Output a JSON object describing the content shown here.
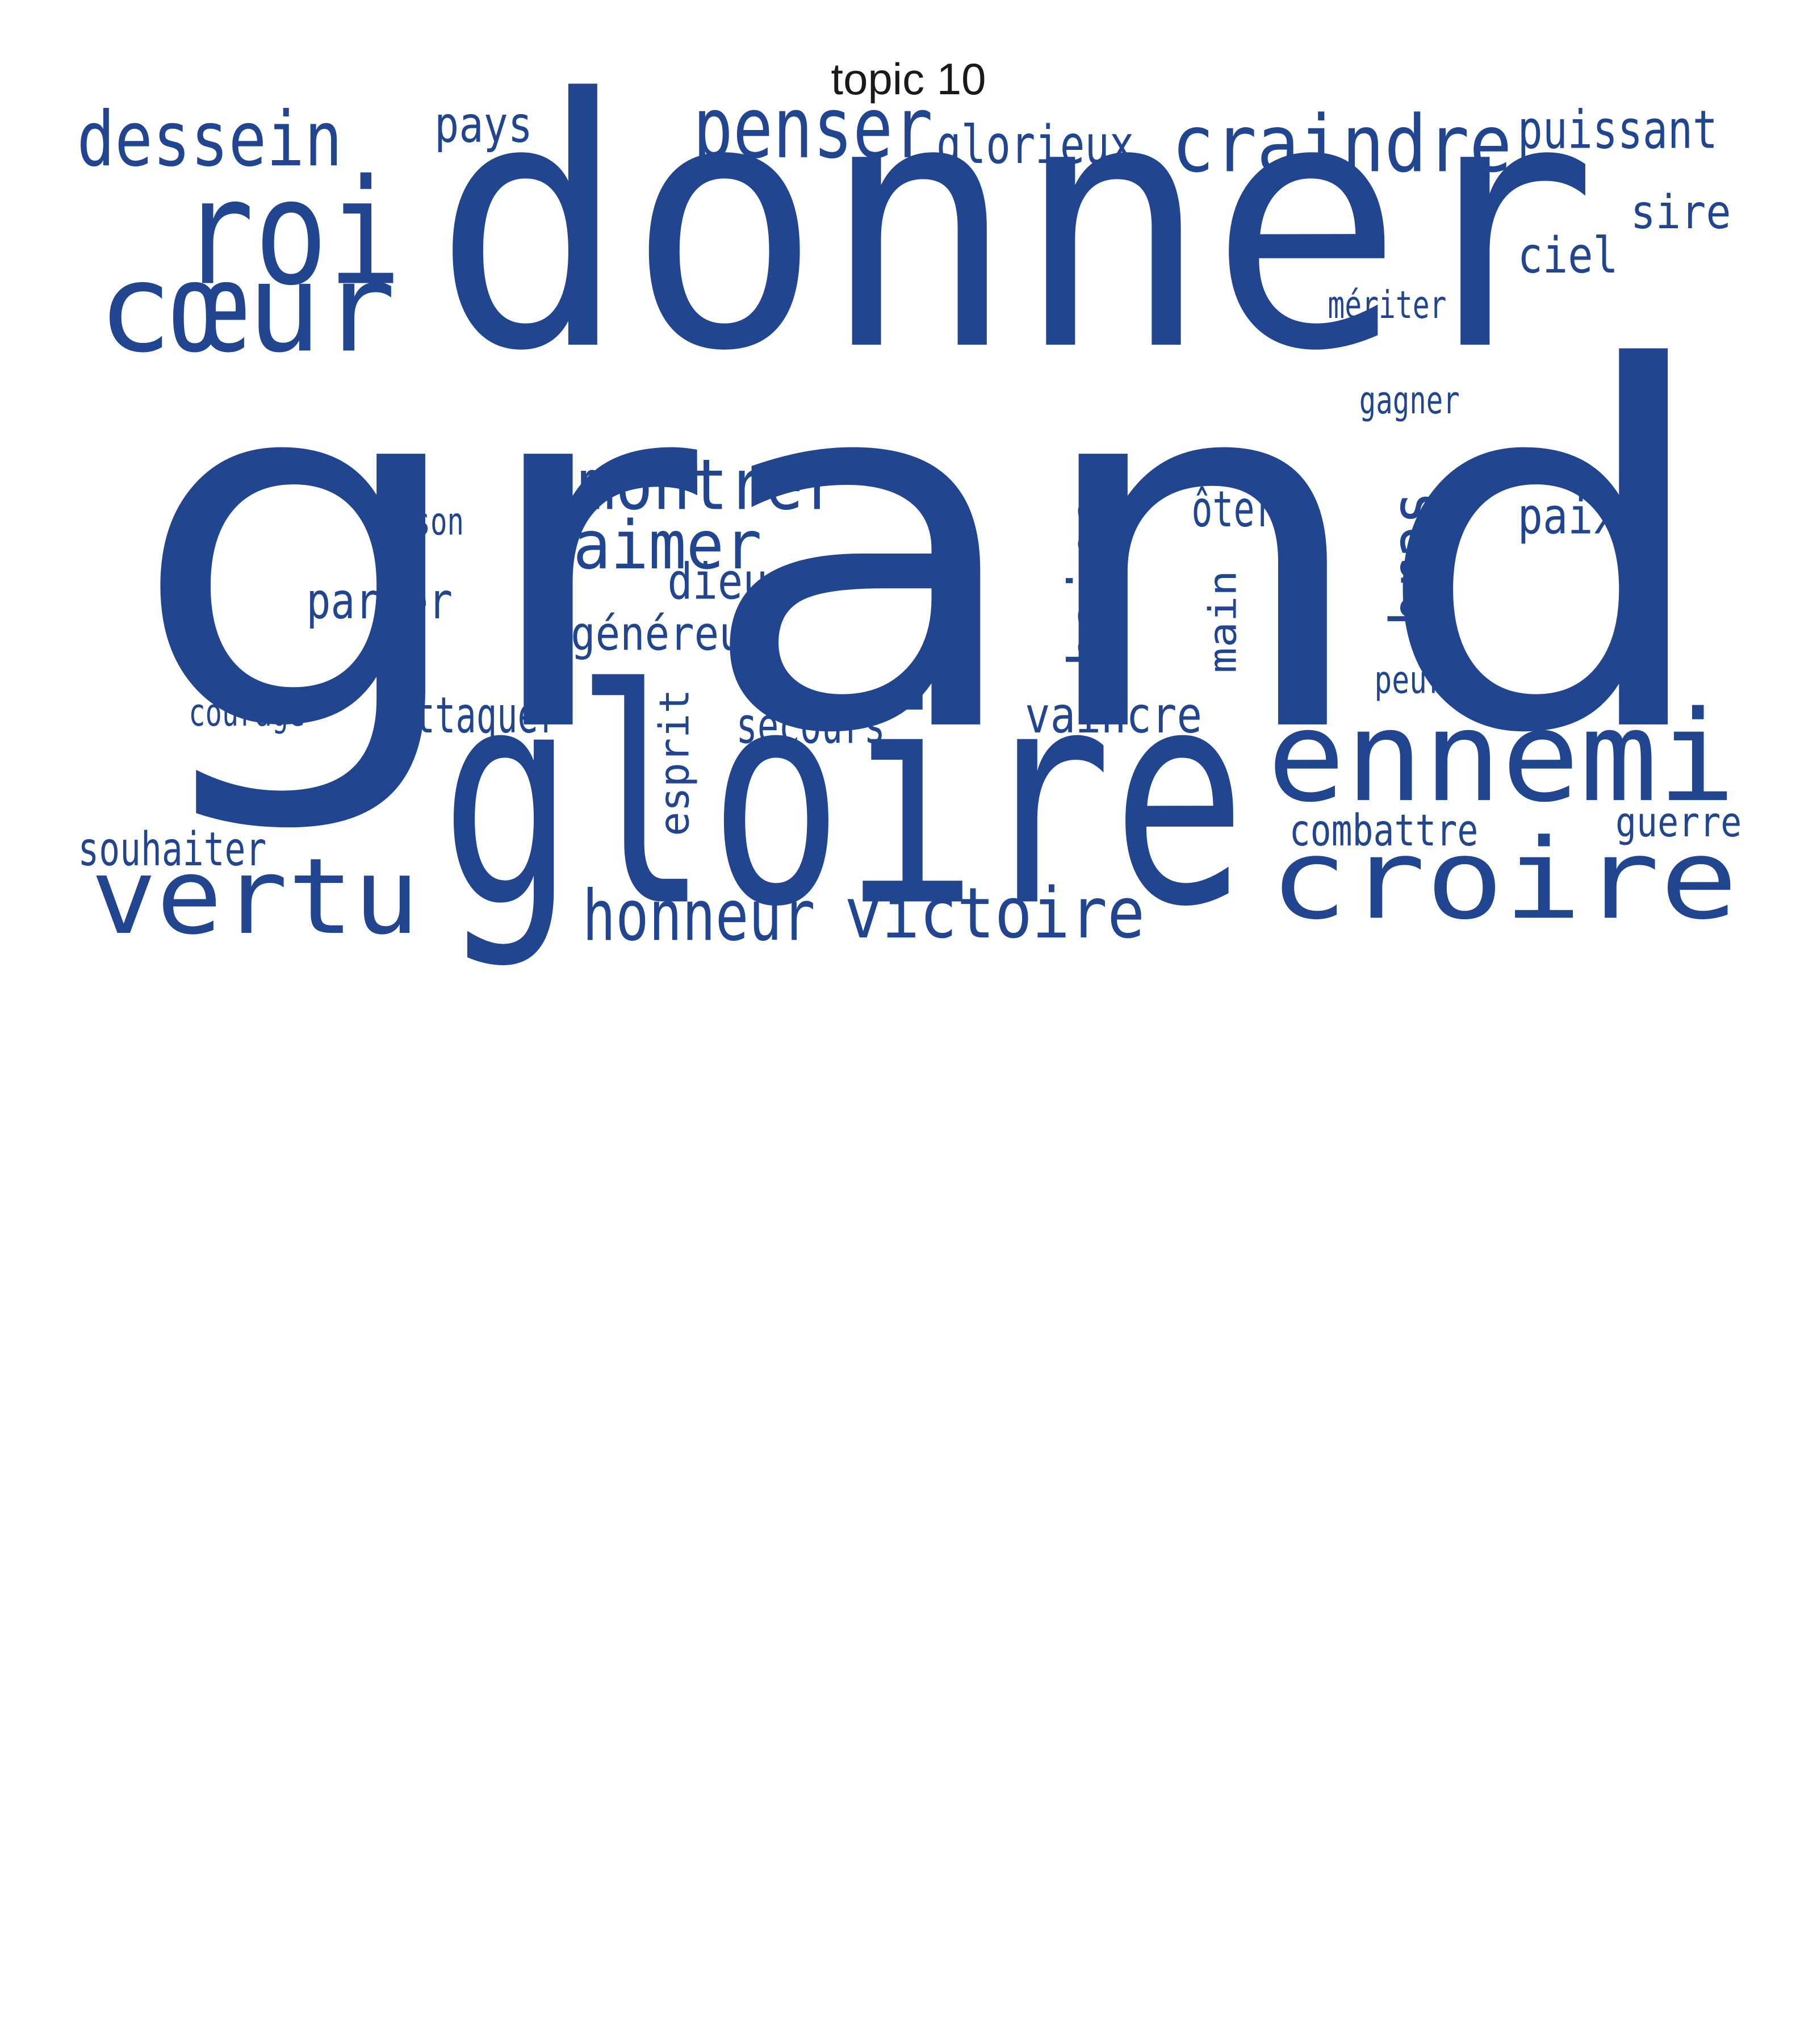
{
  "title": "topic 10",
  "colors": {
    "word": "#21468f",
    "background": "#ffffff",
    "title": "#1a1a1a"
  },
  "words": [
    {
      "text": "grand",
      "orientation": "horizontal"
    },
    {
      "text": "donner",
      "orientation": "horizontal"
    },
    {
      "text": "gloire",
      "orientation": "horizontal"
    },
    {
      "text": "roi",
      "orientation": "horizontal"
    },
    {
      "text": "cœur",
      "orientation": "horizontal"
    },
    {
      "text": "vertu",
      "orientation": "horizontal"
    },
    {
      "text": "croire",
      "orientation": "horizontal"
    },
    {
      "text": "ennemi",
      "orientation": "horizontal"
    },
    {
      "text": "dessein",
      "orientation": "horizontal"
    },
    {
      "text": "penser",
      "orientation": "horizontal"
    },
    {
      "text": "craindre",
      "orientation": "horizontal"
    },
    {
      "text": "pays",
      "orientation": "horizontal"
    },
    {
      "text": "glorieux",
      "orientation": "horizontal"
    },
    {
      "text": "puissant",
      "orientation": "horizontal"
    },
    {
      "text": "sire",
      "orientation": "horizontal"
    },
    {
      "text": "ciel",
      "orientation": "horizontal"
    },
    {
      "text": "mériter",
      "orientation": "horizontal"
    },
    {
      "text": "gagner",
      "orientation": "horizontal"
    },
    {
      "text": "montrer",
      "orientation": "horizontal"
    },
    {
      "text": "aimer",
      "orientation": "horizontal"
    },
    {
      "text": "raison",
      "orientation": "horizontal"
    },
    {
      "text": "dieu",
      "orientation": "horizontal"
    },
    {
      "text": "parler",
      "orientation": "horizontal"
    },
    {
      "text": "généreux",
      "orientation": "horizontal"
    },
    {
      "text": "haine",
      "orientation": "vertical"
    },
    {
      "text": "ôter",
      "orientation": "horizontal"
    },
    {
      "text": "main",
      "orientation": "vertical"
    },
    {
      "text": "bras",
      "orientation": "vertical"
    },
    {
      "text": "paix",
      "orientation": "horizontal"
    },
    {
      "text": "peur",
      "orientation": "horizontal"
    },
    {
      "text": "courage",
      "orientation": "horizontal"
    },
    {
      "text": "attaquer",
      "orientation": "horizontal"
    },
    {
      "text": "esprit",
      "orientation": "vertical"
    },
    {
      "text": "secours",
      "orientation": "horizontal"
    },
    {
      "text": "vaincre",
      "orientation": "horizontal"
    },
    {
      "text": "combattre",
      "orientation": "horizontal"
    },
    {
      "text": "guerre",
      "orientation": "horizontal"
    },
    {
      "text": "souhaiter",
      "orientation": "horizontal"
    },
    {
      "text": "honneur",
      "orientation": "horizontal"
    },
    {
      "text": "victoire",
      "orientation": "horizontal"
    }
  ]
}
